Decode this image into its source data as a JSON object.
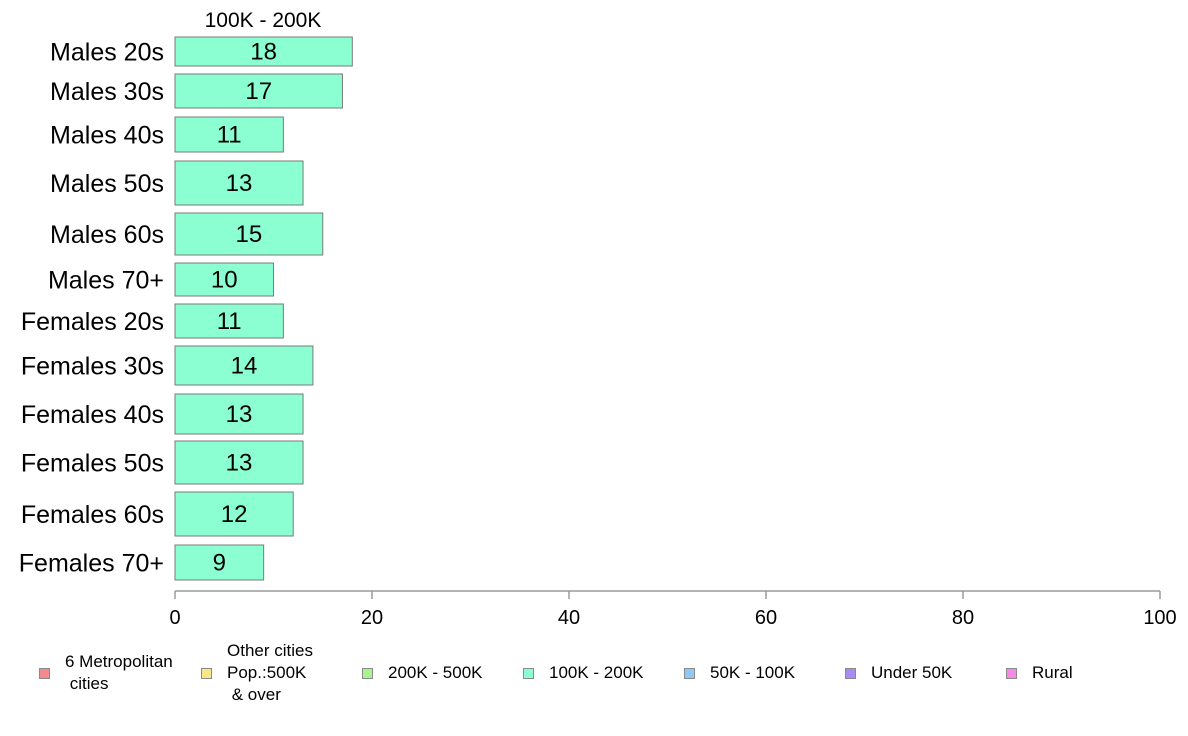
{
  "chart_data": {
    "type": "bar",
    "orientation": "horizontal",
    "panel_title": "100K - 200K",
    "categories": [
      "Males 20s",
      "Males 30s",
      "Males 40s",
      "Males 50s",
      "Males 60s",
      "Males 70+",
      "Females 20s",
      "Females 30s",
      "Females 40s",
      "Females 50s",
      "Females 60s",
      "Females 70+"
    ],
    "values": [
      18,
      17,
      11,
      13,
      15,
      10,
      11,
      14,
      13,
      13,
      12,
      9
    ],
    "xlim": [
      0,
      100
    ],
    "xticks": [
      0,
      20,
      40,
      60,
      80,
      100
    ],
    "bar_color": "#8bffd2",
    "bar_edge_color": "#7a7a7a",
    "grid": false,
    "legend_position": "bottom",
    "legend": [
      {
        "label": "6 Metropolitan\n cities",
        "color": "#f28c8c"
      },
      {
        "label": "Other cities\nPop.:500K\n & over",
        "color": "#f9e58a"
      },
      {
        "label": "200K - 500K",
        "color": "#a6f78b"
      },
      {
        "label": "100K - 200K",
        "color": "#8bffd2"
      },
      {
        "label": "50K - 100K",
        "color": "#8ccaf5"
      },
      {
        "label": "Under 50K",
        "color": "#a98cf2"
      },
      {
        "label": "Rural",
        "color": "#f589e6"
      }
    ]
  }
}
